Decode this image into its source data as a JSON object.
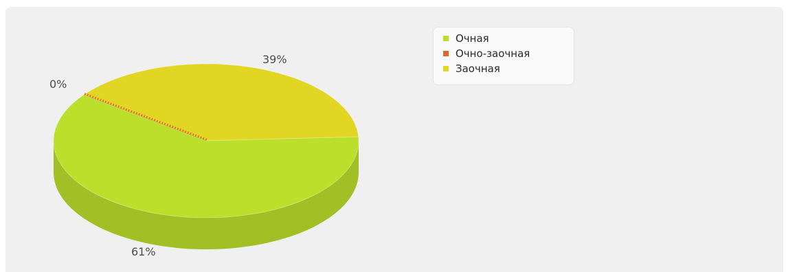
{
  "chart_data": {
    "type": "pie",
    "style": "3d",
    "title": "",
    "categories": [
      "Очная",
      "Очно-заочная",
      "Заочная"
    ],
    "values": [
      61,
      0,
      39
    ],
    "labels": [
      "61%",
      "0%",
      "39%"
    ],
    "colors": [
      "#bcdf2c",
      "#e0652c",
      "#e1d624"
    ],
    "legend": {
      "position": "top-right",
      "items": [
        "Очная",
        "Очно-заочная",
        "Заочная"
      ]
    }
  }
}
